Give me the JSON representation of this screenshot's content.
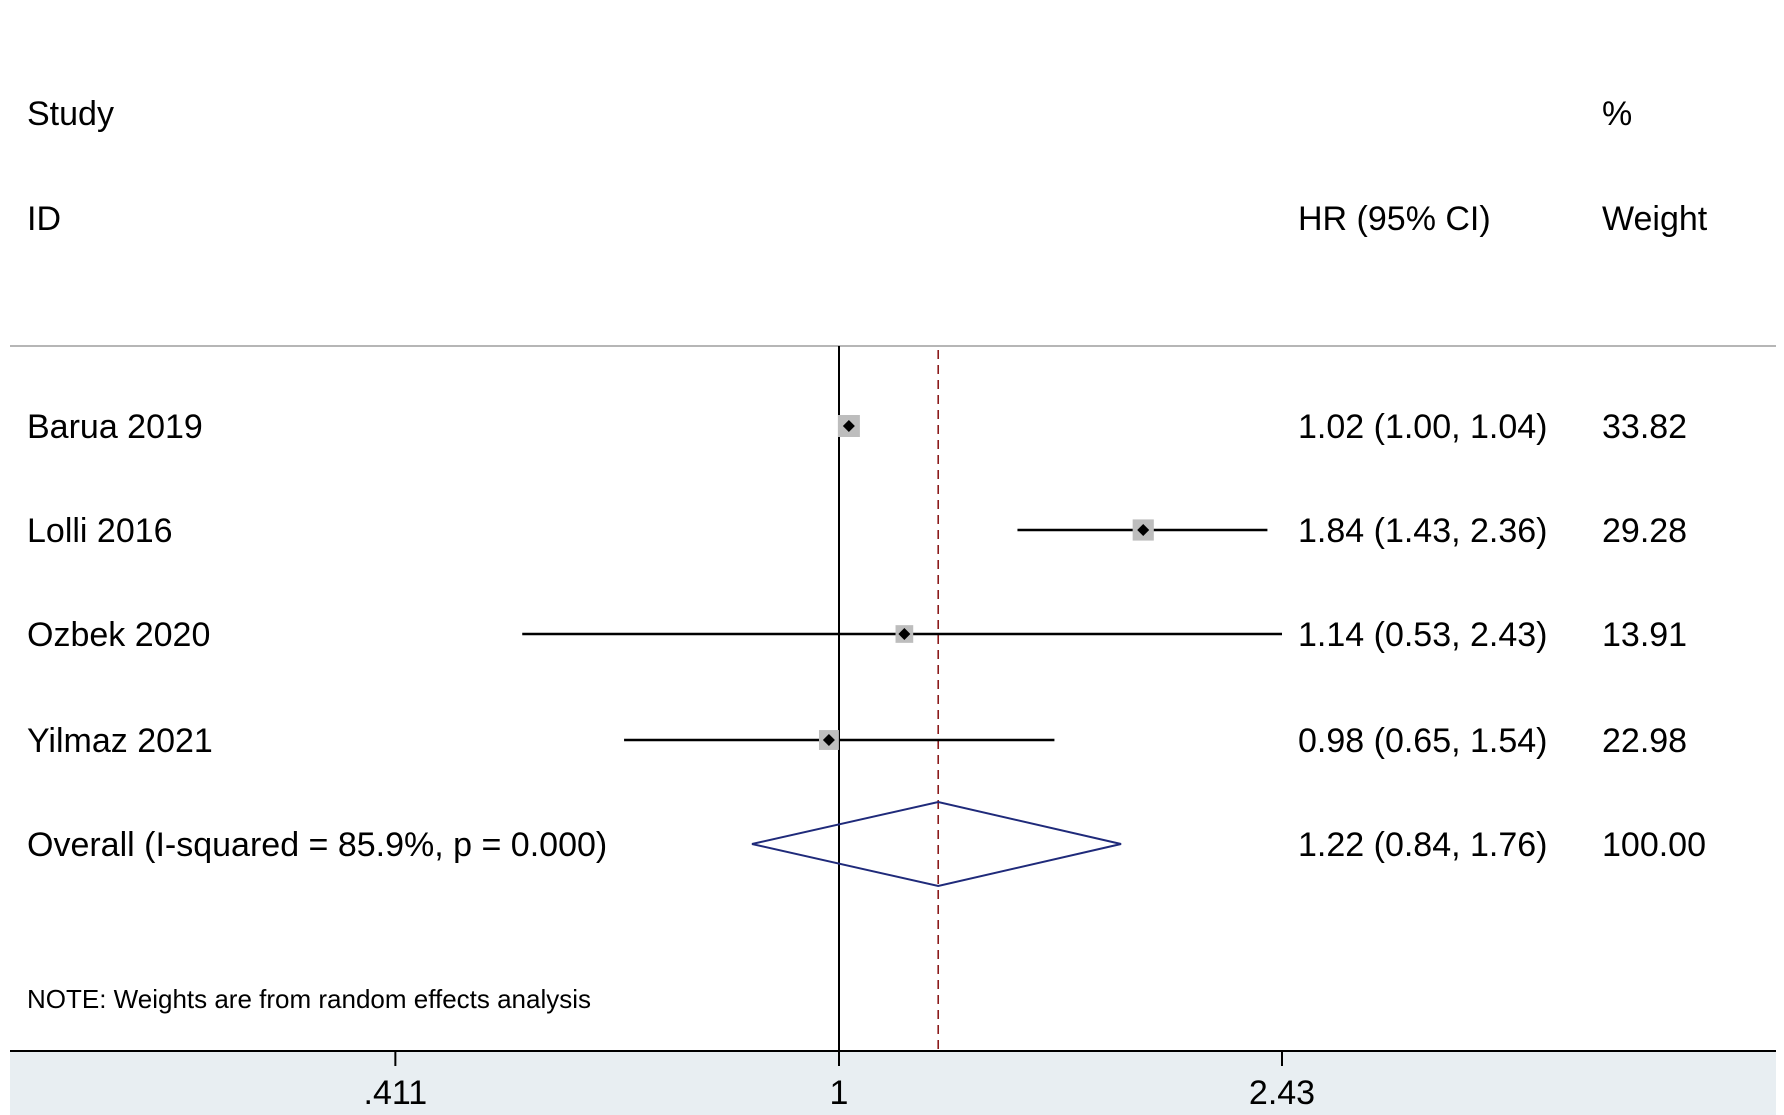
{
  "headers": {
    "study_line1": "Study",
    "study_line2": "ID",
    "effect_label": "HR (95% CI)",
    "weight_line1": "%",
    "weight_line2": "Weight"
  },
  "note": "NOTE: Weights are from random effects analysis",
  "colors": {
    "study_box": "#bdbdbd",
    "point": "#000000",
    "ci_line": "#000000",
    "overall_diamond": "#1f2a7a",
    "overall_line": "#8b1a1a",
    "axis_band": "#e8eef2",
    "divider": "#9e9e9e"
  },
  "chart_data": {
    "type": "forest",
    "measure": "HR",
    "scale": "log",
    "reference_line": 1,
    "x_ticks": [
      {
        "value": 0.411,
        "label": ".411"
      },
      {
        "value": 1,
        "label": "1"
      },
      {
        "value": 2.43,
        "label": "2.43"
      }
    ],
    "x_range": [
      0.411,
      2.43
    ],
    "studies": [
      {
        "id": "Barua 2019",
        "hr": 1.02,
        "lower": 1.0,
        "upper": 1.04,
        "ci_text": "1.02 (1.00, 1.04)",
        "weight": 33.82,
        "weight_text": "33.82"
      },
      {
        "id": "Lolli 2016",
        "hr": 1.84,
        "lower": 1.43,
        "upper": 2.36,
        "ci_text": "1.84 (1.43, 2.36)",
        "weight": 29.28,
        "weight_text": "29.28"
      },
      {
        "id": "Ozbek 2020",
        "hr": 1.14,
        "lower": 0.53,
        "upper": 2.43,
        "ci_text": "1.14 (0.53, 2.43)",
        "weight": 13.91,
        "weight_text": "13.91"
      },
      {
        "id": "Yilmaz 2021",
        "hr": 0.98,
        "lower": 0.65,
        "upper": 1.54,
        "ci_text": "0.98 (0.65, 1.54)",
        "weight": 22.98,
        "weight_text": "22.98"
      }
    ],
    "overall": {
      "label": "Overall  (I-squared = 85.9%, p = 0.000)",
      "hr": 1.22,
      "lower": 0.84,
      "upper": 1.76,
      "ci_text": "1.22 (0.84, 1.76)",
      "weight": 100.0,
      "weight_text": "100.00"
    }
  }
}
